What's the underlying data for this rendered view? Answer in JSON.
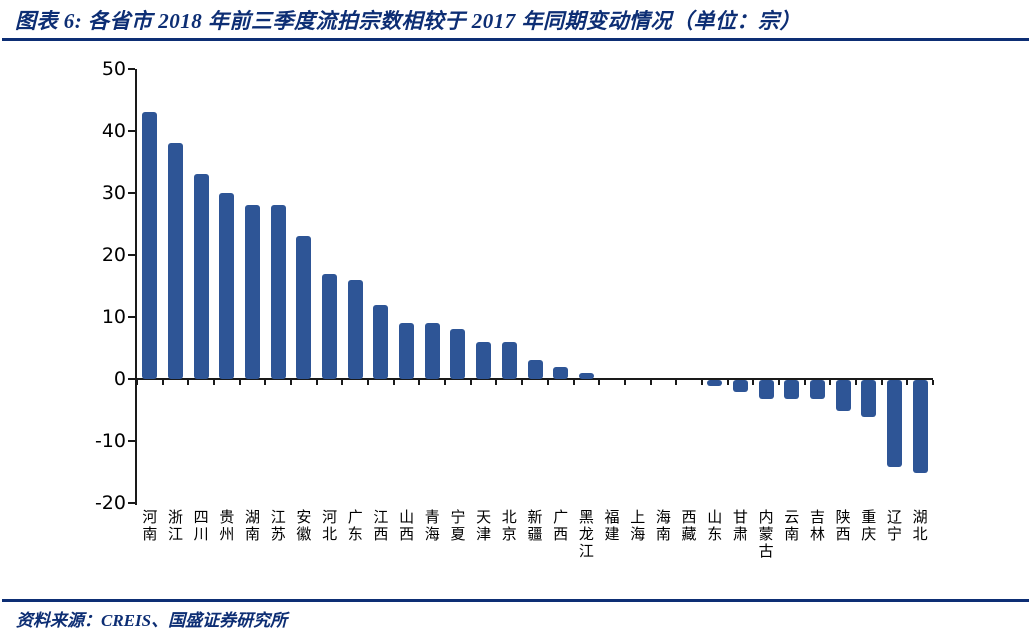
{
  "header": {
    "title": "图表 6: 各省市 2018 年前三季度流拍宗数相较于 2017 年同期变动情况（单位：宗）"
  },
  "footer": {
    "source": "资料来源：CREIS、国盛证券研究所"
  },
  "colors": {
    "accent_navy": "#0d2e74",
    "bar_blue": "#2e5596",
    "axis_black": "#1a1a1a"
  },
  "chart_data": {
    "type": "bar",
    "title": "各省市2018年前三季度流拍宗数相较于2017年同期变动情况",
    "unit": "宗",
    "categories": [
      "河南",
      "浙江",
      "四川",
      "贵州",
      "湖南",
      "江苏",
      "安徽",
      "河北",
      "广东",
      "江西",
      "山西",
      "青海",
      "宁夏",
      "天津",
      "北京",
      "新疆",
      "广西",
      "黑龙江",
      "福建",
      "上海",
      "海南",
      "西藏",
      "山东",
      "甘肃",
      "内蒙古",
      "云南",
      "吉林",
      "陕西",
      "重庆",
      "辽宁",
      "湖北"
    ],
    "values": [
      43,
      38,
      33,
      30,
      28,
      28,
      23,
      17,
      16,
      12,
      9,
      9,
      8,
      6,
      6,
      3,
      2,
      1,
      0,
      0,
      0,
      0,
      -1,
      -2,
      -3,
      -3,
      -3,
      -5,
      -6,
      -14,
      -15
    ],
    "xlabel": "",
    "ylabel": "",
    "ylim": [
      -20,
      50
    ],
    "yticks": [
      50,
      40,
      30,
      20,
      10,
      0,
      -10,
      -20
    ],
    "grid": false,
    "legend": "none"
  }
}
